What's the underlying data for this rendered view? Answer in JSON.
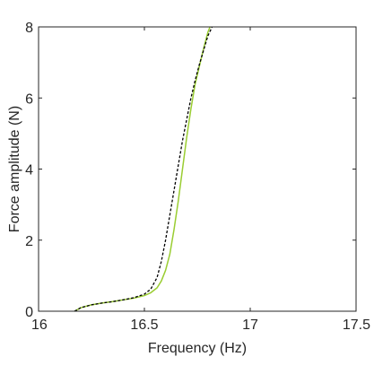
{
  "chart_data": {
    "type": "line",
    "xlabel": "Frequency (Hz)",
    "ylabel": "Force amplitude (N)",
    "xlim": [
      16,
      17.5
    ],
    "ylim": [
      0,
      8
    ],
    "xticks": [
      16,
      16.5,
      17,
      17.5
    ],
    "xtick_labels": [
      "16",
      "16.5",
      "17",
      "17.5"
    ],
    "yticks": [
      0,
      2,
      4,
      6,
      8
    ],
    "ytick_labels": [
      "0",
      "2",
      "4",
      "6",
      "8"
    ],
    "grid": false,
    "box": true,
    "series": [
      {
        "style": "solid",
        "color": "#9acd32",
        "x": [
          16.17,
          16.2,
          16.25,
          16.3,
          16.35,
          16.4,
          16.45,
          16.5,
          16.53,
          16.56,
          16.58,
          16.6,
          16.62,
          16.64,
          16.66,
          16.68,
          16.7,
          16.72,
          16.74,
          16.76,
          16.78,
          16.8,
          16.81
        ],
        "y": [
          0.0,
          0.1,
          0.18,
          0.23,
          0.27,
          0.32,
          0.37,
          0.44,
          0.52,
          0.66,
          0.85,
          1.15,
          1.6,
          2.3,
          3.1,
          4.0,
          4.9,
          5.7,
          6.4,
          6.9,
          7.4,
          7.85,
          8.0
        ]
      },
      {
        "style": "dashed",
        "color": "#000000",
        "x": [
          16.17,
          16.2,
          16.25,
          16.3,
          16.35,
          16.4,
          16.45,
          16.5,
          16.53,
          16.56,
          16.58,
          16.6,
          16.62,
          16.64,
          16.66,
          16.68,
          16.7,
          16.72,
          16.74,
          16.76,
          16.78,
          16.8,
          16.82
        ],
        "y": [
          0.0,
          0.1,
          0.18,
          0.23,
          0.27,
          0.32,
          0.38,
          0.48,
          0.62,
          0.95,
          1.4,
          2.0,
          2.7,
          3.4,
          4.1,
          4.8,
          5.4,
          6.0,
          6.5,
          6.95,
          7.35,
          7.75,
          8.0
        ]
      }
    ]
  }
}
